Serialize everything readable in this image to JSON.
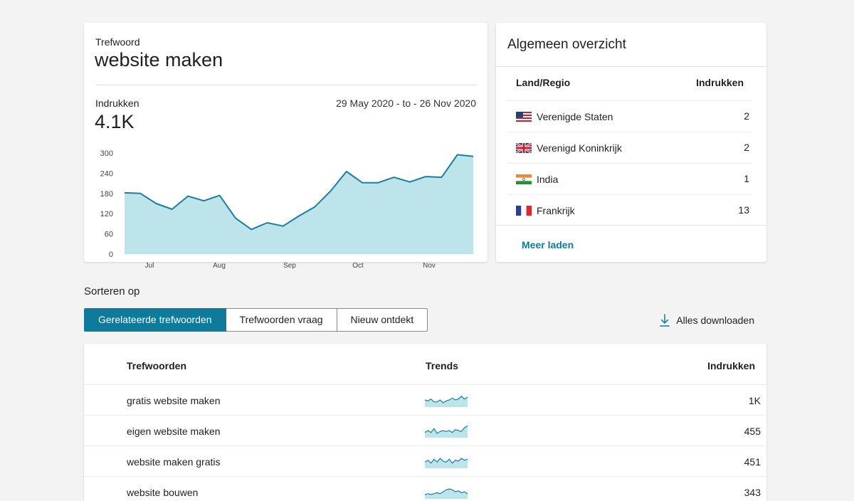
{
  "keyword_card": {
    "label": "Trefwoord",
    "keyword": "website maken",
    "impressions_label": "Indrukken",
    "impressions_value": "4.1K",
    "date_range": "29 May 2020 - to - 26 Nov 2020"
  },
  "chart_data": {
    "type": "area",
    "title": "",
    "xlabel": "",
    "ylabel": "",
    "ylim": [
      0,
      300
    ],
    "y_ticks": [
      "300",
      "240",
      "180",
      "120",
      "60",
      "0"
    ],
    "x_ticks": [
      "Jul",
      "Aug",
      "Sep",
      "Oct",
      "Nov"
    ],
    "series": [
      {
        "values": [
          182,
          180,
          150,
          133,
          172,
          158,
          174,
          107,
          73,
          93,
          83,
          113,
          140,
          187,
          245,
          212,
          212,
          228,
          214,
          230,
          228,
          295,
          290
        ]
      }
    ],
    "line_color": "#1a7f9c",
    "fill_color": "#bde3eb"
  },
  "overview": {
    "title": "Algemeen overzicht",
    "col_country": "Land/Regio",
    "col_impressions": "Indrukken",
    "rows": [
      {
        "flag": "us-flag",
        "country": "Verenigde Staten",
        "value": "2"
      },
      {
        "flag": "uk-flag",
        "country": "Verenigd Koninkrijk",
        "value": "2"
      },
      {
        "flag": "india-flag",
        "country": "India",
        "value": "1"
      },
      {
        "flag": "france-flag",
        "country": "Frankrijk",
        "value": "13"
      }
    ],
    "load_more": "Meer laden"
  },
  "sort": {
    "label": "Sorteren op",
    "tabs": [
      {
        "label": "Gerelateerde trefwoorden",
        "active": true
      },
      {
        "label": "Trefwoorden vraag",
        "active": false
      },
      {
        "label": "Nieuw ontdekt",
        "active": false
      }
    ],
    "download": "Alles downloaden",
    "download_icon": "download-icon"
  },
  "keywords_table": {
    "col_keyword": "Trefwoorden",
    "col_trends": "Trends",
    "col_impressions": "Indrukken",
    "rows": [
      {
        "keyword": "gratis website maken",
        "impressions": "1K",
        "trend": [
          6,
          5,
          7,
          4,
          4,
          6,
          3,
          5,
          6,
          8,
          6,
          7,
          10,
          7,
          9
        ]
      },
      {
        "keyword": "eigen website maken",
        "impressions": "455",
        "trend": [
          4,
          6,
          4,
          8,
          3,
          5,
          6,
          5,
          6,
          4,
          7,
          6,
          5,
          9,
          11
        ]
      },
      {
        "keyword": "website maken gratis",
        "impressions": "451",
        "trend": [
          5,
          7,
          4,
          8,
          5,
          9,
          6,
          5,
          8,
          4,
          7,
          6,
          9,
          7,
          8
        ]
      },
      {
        "keyword": "website bouwen",
        "impressions": "343",
        "trend": [
          3,
          4,
          3,
          4,
          5,
          4,
          6,
          8,
          9,
          8,
          6,
          7,
          5,
          6,
          4
        ]
      }
    ]
  }
}
